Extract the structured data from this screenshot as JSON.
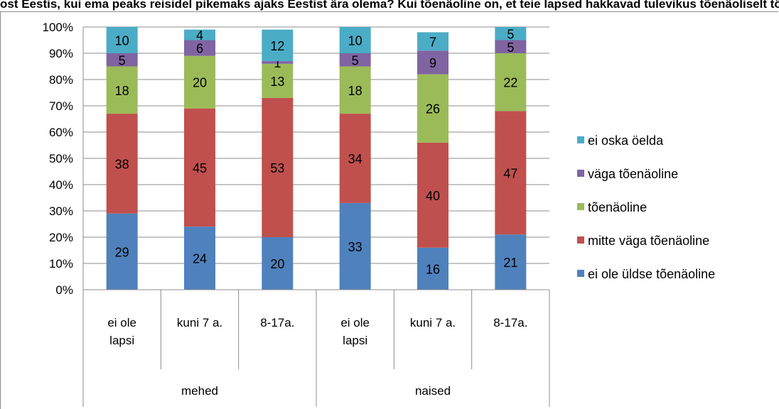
{
  "header": {
    "title_visible_fragment": "ost Eestis, kui ema peaks reisidel pikemaks ajaks Eestist ära olema? Kui tõenäoline on, et teie lapsed hakkavad tulevikus tõenäoliselt töötama? Kui"
  },
  "chart_data": {
    "type": "bar",
    "stacked": true,
    "percent_stacked": true,
    "title": "",
    "xlabel": "",
    "ylabel": "",
    "ylim": [
      0,
      100
    ],
    "y_ticks": [
      "0%",
      "10%",
      "20%",
      "30%",
      "40%",
      "50%",
      "60%",
      "70%",
      "80%",
      "90%",
      "100%"
    ],
    "grid": true,
    "legend_position": "right",
    "groups": [
      {
        "name": "mehed",
        "categories": [
          "ei ole lapsi",
          "kuni 7 a.",
          "8-17a."
        ]
      },
      {
        "name": "naised",
        "categories": [
          "ei ole lapsi",
          "kuni 7 a.",
          "8-17a."
        ]
      }
    ],
    "category_lines": [
      [
        "ei ole",
        "lapsi"
      ],
      [
        "kuni 7 a."
      ],
      [
        "8-17a."
      ],
      [
        "ei ole",
        "lapsi"
      ],
      [
        "kuni 7 a."
      ],
      [
        "8-17a."
      ]
    ],
    "series": [
      {
        "name": "ei ole üldse tõenäoline",
        "color": "#4f81bd",
        "values": [
          29,
          24,
          20,
          33,
          16,
          21
        ]
      },
      {
        "name": "mitte väga tõenäoline",
        "color": "#c0504d",
        "values": [
          38,
          45,
          53,
          34,
          40,
          47
        ]
      },
      {
        "name": "tõenäoline",
        "color": "#9bbb59",
        "values": [
          18,
          20,
          13,
          18,
          26,
          22
        ]
      },
      {
        "name": "väga tõenäoline",
        "color": "#8064a2",
        "values": [
          5,
          6,
          1,
          5,
          9,
          5
        ]
      },
      {
        "name": "ei oska öelda",
        "color": "#4bacc6",
        "values": [
          10,
          4,
          12,
          10,
          7,
          5
        ]
      }
    ]
  }
}
